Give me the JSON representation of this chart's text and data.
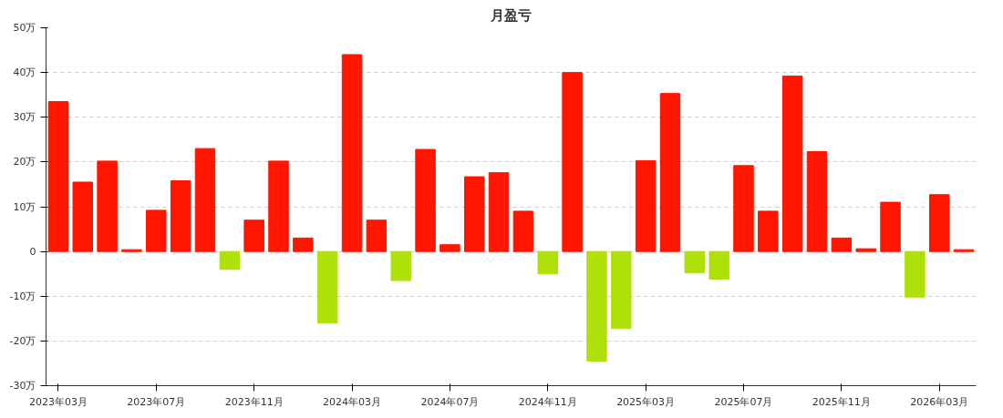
{
  "chart_data": {
    "type": "bar",
    "title": "月盈亏",
    "categories": [
      "2023年03月",
      null,
      null,
      null,
      "2023年07月",
      null,
      null,
      null,
      "2023年11月",
      null,
      null,
      null,
      "2024年03月",
      null,
      null,
      null,
      "2024年07月",
      null,
      null,
      null,
      "2024年11月",
      null,
      null,
      null,
      "2025年03月",
      null,
      null,
      null,
      "2025年07月",
      null,
      null,
      null,
      "2025年11月",
      null,
      null,
      null,
      "2026年03月",
      null
    ],
    "values": [
      33.5,
      15.5,
      20.2,
      0.4,
      9.2,
      15.8,
      23,
      -4,
      7,
      20.2,
      3,
      -16,
      44,
      7,
      -6.5,
      22.8,
      1.5,
      16.7,
      17.6,
      9,
      -5,
      40,
      -24.5,
      -17.2,
      20.3,
      35.3,
      -4.8,
      -6.2,
      19.2,
      9,
      39.2,
      22.3,
      3,
      0.6,
      11,
      -10.2,
      12.7,
      0.4
    ],
    "colors": [
      "#ff1500",
      "#ff1500",
      "#ff1500",
      "#ff1500",
      "#ff1500",
      "#ff1500",
      "#ff1500",
      "#b0e00a",
      "#ff1500",
      "#ff1500",
      "#ff1500",
      "#b0e00a",
      "#ff1500",
      "#ff1500",
      "#b0e00a",
      "#ff1500",
      "#ff1500",
      "#ff1500",
      "#ff1500",
      "#ff1500",
      "#b0e00a",
      "#ff1500",
      "#b0e00a",
      "#b0e00a",
      "#ff1500",
      "#ff1500",
      "#b0e00a",
      "#b0e00a",
      "#ff1500",
      "#ff1500",
      "#ff1500",
      "#ff1500",
      "#ff1500",
      "#ff1500",
      "#ff1500",
      "#b0e00a",
      "#ff1500",
      "#ff1500"
    ],
    "ylim": [
      -30,
      50
    ],
    "yticks": [
      {
        "value": -30,
        "label": "-30万"
      },
      {
        "value": -20,
        "label": "-20万"
      },
      {
        "value": -10,
        "label": "-10万"
      },
      {
        "value": 0,
        "label": "0"
      },
      {
        "value": 10,
        "label": "10万"
      },
      {
        "value": 20,
        "label": "20万"
      },
      {
        "value": 30,
        "label": "30万"
      },
      {
        "value": 40,
        "label": "40万"
      },
      {
        "value": 50,
        "label": "50万"
      }
    ],
    "grid": "y"
  }
}
